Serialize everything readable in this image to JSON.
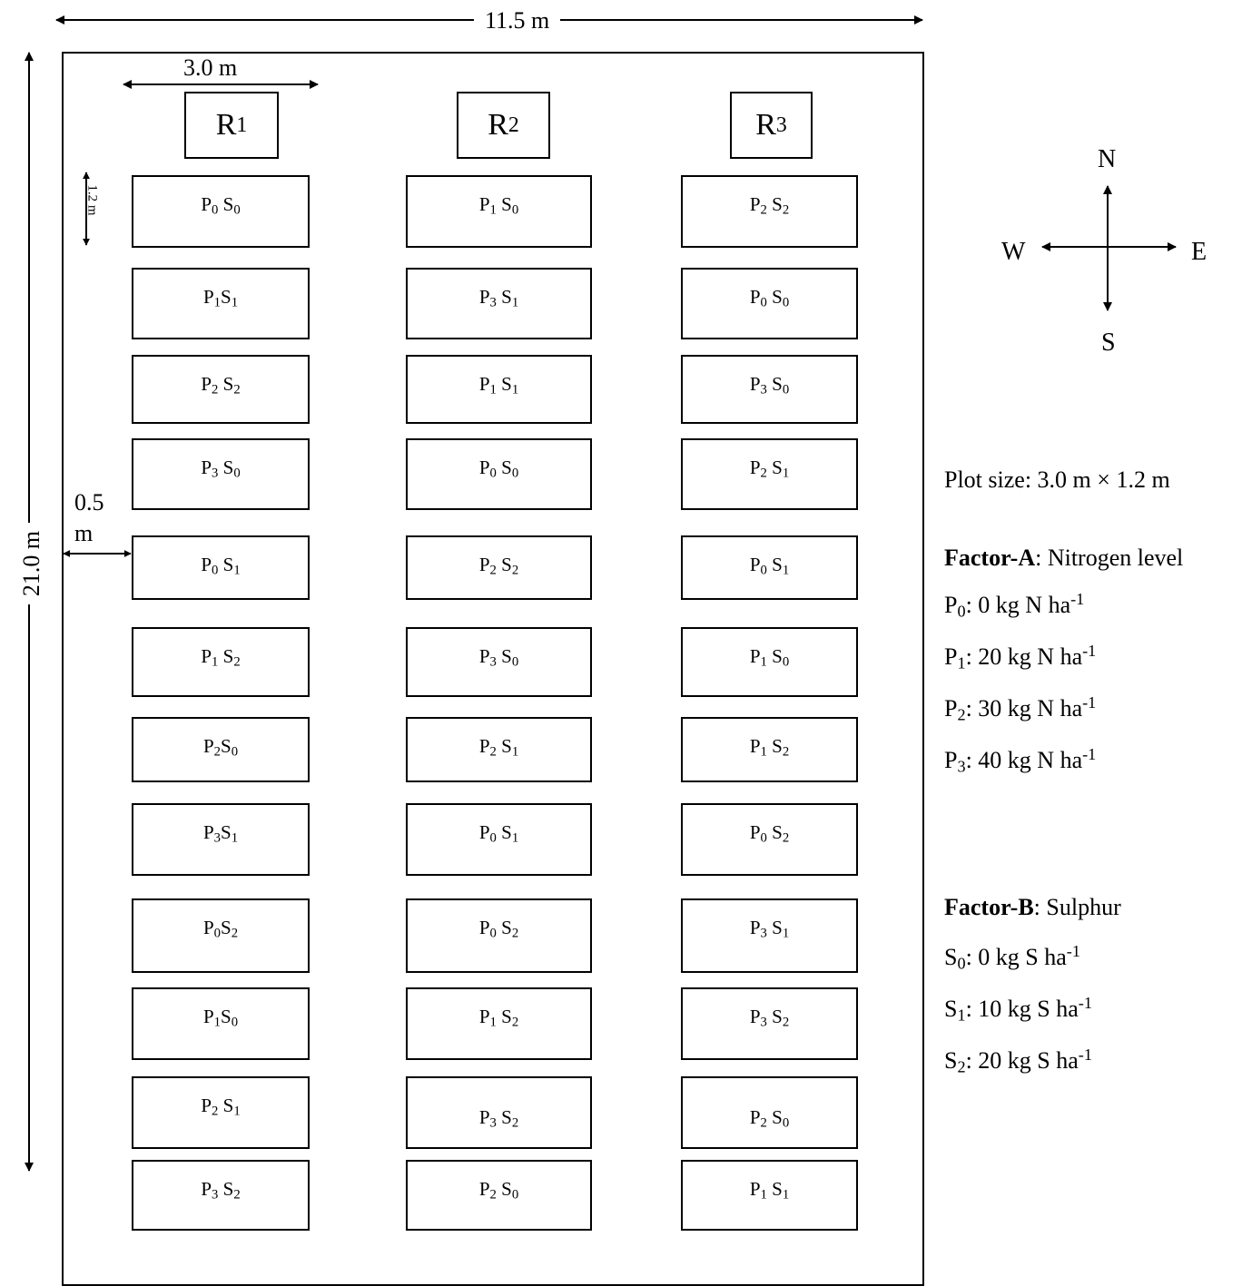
{
  "dimensions": {
    "width": "11.5 m",
    "length": "21.0 m",
    "replication_width": "3.0 m",
    "plot_height": "1.2 m",
    "spacing": "0.5 m"
  },
  "replications": [
    {
      "label": "R1",
      "plots": [
        "P0 S0",
        "P1S1",
        "P2 S2",
        "P3 S0",
        "P0 S1",
        "P1 S2",
        "P2S0",
        "P3S1",
        "P0S2",
        "P1S0",
        "P2 S1",
        "P3 S2"
      ]
    },
    {
      "label": "R2",
      "plots": [
        "P1 S0",
        "P3 S1",
        "P1 S1",
        "P0 S0",
        "P2 S2",
        "P3 S0",
        "P2 S1",
        "P0 S1",
        "P0 S2",
        "P1 S2",
        "P3 S2",
        "P2 S0"
      ]
    },
    {
      "label": "R3",
      "plots": [
        "P2 S2",
        "P0 S0",
        "P3 S0",
        "P2 S1",
        "P0 S1",
        "P1 S0",
        "P1 S2",
        "P0 S2",
        "P3 S1",
        "P3 S2",
        "P2 S0",
        "P1 S1"
      ]
    }
  ],
  "compass": {
    "north": "N",
    "south": "S",
    "east": "E",
    "west": "W"
  },
  "legend": {
    "plot_size": "Plot size: 3.0 m × 1.2 m",
    "factor_a": {
      "title": "Factor-A",
      "name": ": Nitrogen level",
      "levels": [
        "P0: 0 kg N ha-1",
        "P1: 20 kg N ha-1",
        "P2: 30 kg N ha-1",
        "P3: 40 kg N ha-1"
      ]
    },
    "factor_b": {
      "title": "Factor-B",
      "name": ": Sulphur",
      "levels": [
        "S0: 0 kg S ha-1",
        "S1: 10 kg S ha-1",
        "S2: 20 kg S ha-1"
      ]
    }
  }
}
